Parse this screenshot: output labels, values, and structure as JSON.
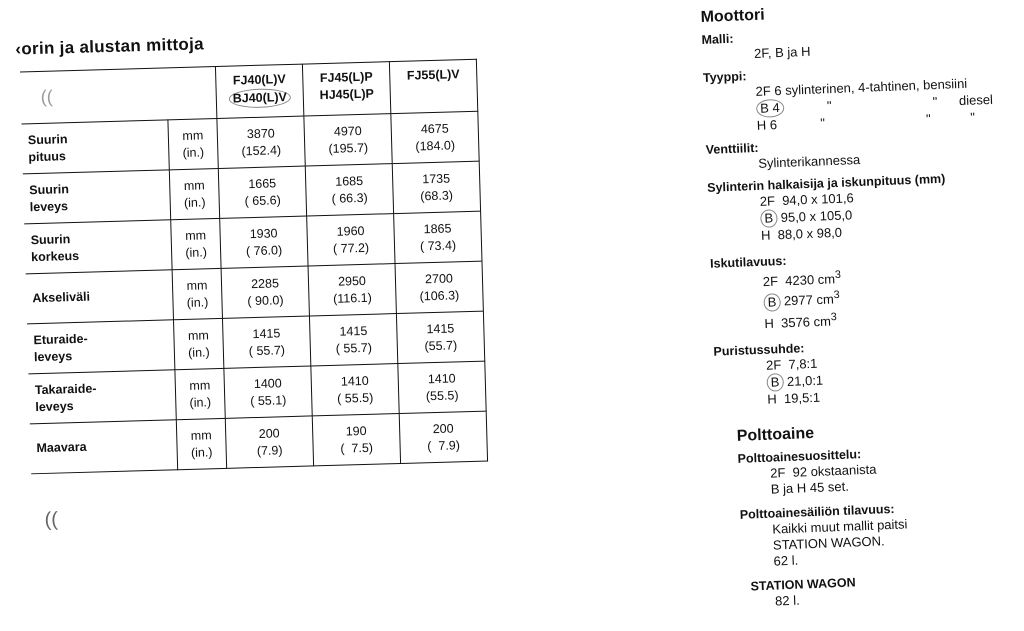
{
  "left": {
    "title": "‹orin ja alustan mittoja",
    "headers": [
      "FJ40(L)V",
      "BJ40(L)V",
      "FJ45(L)P",
      "HJ45(L)P",
      "FJ55(L)V"
    ],
    "unit": [
      "mm",
      "(in.)"
    ],
    "rows": [
      {
        "label": [
          "Suurin",
          "pituus"
        ],
        "v": [
          [
            "3870",
            "(152.4)"
          ],
          [
            "4970",
            "(195.7)"
          ],
          [
            "4675",
            "(184.0)"
          ]
        ]
      },
      {
        "label": [
          "Suurin",
          "leveys"
        ],
        "v": [
          [
            "1665",
            "( 65.6)"
          ],
          [
            "1685",
            "( 66.3)"
          ],
          [
            "1735",
            "(68.3)"
          ]
        ]
      },
      {
        "label": [
          "Suurin",
          "korkeus"
        ],
        "v": [
          [
            "1930",
            "( 76.0)"
          ],
          [
            "1960",
            "( 77.2)"
          ],
          [
            "1865",
            "( 73.4)"
          ]
        ]
      },
      {
        "label": [
          "Akseliväli",
          ""
        ],
        "v": [
          [
            "2285",
            "( 90.0)"
          ],
          [
            "2950",
            "(116.1)"
          ],
          [
            "2700",
            "(106.3)"
          ]
        ]
      },
      {
        "label": [
          "Eturaide-",
          "leveys"
        ],
        "v": [
          [
            "1415",
            "( 55.7)"
          ],
          [
            "1415",
            "( 55.7)"
          ],
          [
            "1415",
            "(55.7)"
          ]
        ]
      },
      {
        "label": [
          "Takaraide-",
          "leveys"
        ],
        "v": [
          [
            "1400",
            "( 55.1)"
          ],
          [
            "1410",
            "( 55.5)"
          ],
          [
            "1410",
            "(55.5)"
          ]
        ]
      },
      {
        "label": [
          "Maavara",
          ""
        ],
        "v": [
          [
            "200",
            "(7.9)"
          ],
          [
            "190",
            "(  7.5)"
          ],
          [
            "200",
            "(  7.9)"
          ]
        ]
      }
    ]
  },
  "right": {
    "moottori": "Moottori",
    "malli_h": "Malli:",
    "malli": "2F, B ja H",
    "tyyppi_h": "Tyyppi:",
    "tyyppi": [
      "2F 6 sylinterinen, 4-tahtinen, bensiini",
      "B 4",
      "            \"                            \"      diesel",
      "H 6",
      "            \"                            \"           \""
    ],
    "venttiilit_h": "Venttiilit:",
    "venttiilit": "Sylinterikannessa",
    "syl_h": "Sylinterin halkaisija ja iskunpituus (mm)",
    "syl": [
      "2F  94,0 x 101,6",
      "B",
      " 95,0 x 105,0",
      "H  88,0 x 98,0"
    ],
    "isku_h": "Iskutilavuus:",
    "isku": [
      "2F  4230 cm",
      "B",
      " 2977 cm",
      "H  3576 cm",
      "3"
    ],
    "puris_h": "Puristussuhde:",
    "puris": [
      "2F  7,8:1",
      "B",
      " 21,0:1",
      "H  19,5:1"
    ],
    "polttoaine": "Polttoaine",
    "suos_h": "Polttoainesuosittelu:",
    "suos": [
      "2F  92 okstaanista",
      "B ja H 45 set."
    ],
    "sailio_h": "Polttoainesäiliön tilavuus:",
    "sailio": [
      "Kaikki muut mallit paitsi",
      "STATION WAGON.",
      "62 l."
    ],
    "sw_h": "STATION WAGON",
    "sw": "82 l."
  }
}
